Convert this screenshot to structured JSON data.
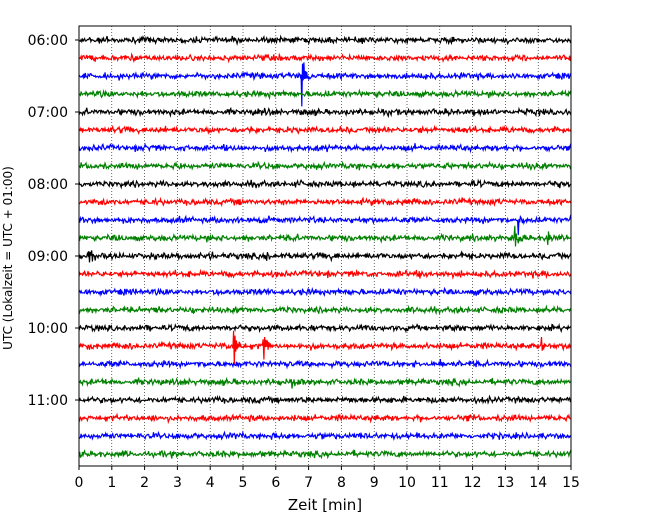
{
  "chart_data": {
    "type": "line",
    "title": "",
    "xlabel": "Zeit  [min]",
    "ylabel": "UTC (Lokalzeit = UTC + 01:00)",
    "xlim": [
      0,
      15
    ],
    "x_ticks": [
      0,
      1,
      2,
      3,
      4,
      5,
      6,
      7,
      8,
      9,
      10,
      11,
      12,
      13,
      14,
      15
    ],
    "y_ticks": [
      {
        "label": "06:00",
        "trace_index": 0
      },
      {
        "label": "07:00",
        "trace_index": 4
      },
      {
        "label": "08:00",
        "trace_index": 8
      },
      {
        "label": "09:00",
        "trace_index": 12
      },
      {
        "label": "10:00",
        "trace_index": 16
      },
      {
        "label": "11:00",
        "trace_index": 20
      }
    ],
    "grid": "vertical dotted at each minute",
    "trace_colors": [
      "#000000",
      "#ff0000",
      "#0000ff",
      "#008000"
    ],
    "trace_count": 24,
    "trace_start": "06:00",
    "trace_interval_min": 15,
    "events": [
      {
        "trace": 2,
        "x": 6.8,
        "amp": 4.0
      },
      {
        "trace": 9,
        "x": 0.7,
        "amp": 0.5
      },
      {
        "trace": 9,
        "x": 5.2,
        "amp": 0.4
      },
      {
        "trace": 9,
        "x": 9.0,
        "amp": 0.4
      },
      {
        "trace": 10,
        "x": 1.2,
        "amp": 0.6
      },
      {
        "trace": 10,
        "x": 5.5,
        "amp": 0.6
      },
      {
        "trace": 10,
        "x": 13.4,
        "amp": 2.0
      },
      {
        "trace": 11,
        "x": 13.3,
        "amp": 1.5
      },
      {
        "trace": 11,
        "x": 14.3,
        "amp": 1.2
      },
      {
        "trace": 11,
        "x": 11.0,
        "amp": 0.5
      },
      {
        "trace": 12,
        "x": 0.3,
        "amp": 1.2
      },
      {
        "trace": 12,
        "x": 4.0,
        "amp": 1.2
      },
      {
        "trace": 12,
        "x": 5.7,
        "amp": 0.8
      },
      {
        "trace": 13,
        "x": 10.4,
        "amp": 0.6
      },
      {
        "trace": 13,
        "x": 11.2,
        "amp": 0.6
      },
      {
        "trace": 15,
        "x": 1.6,
        "amp": 0.4
      },
      {
        "trace": 17,
        "x": 4.7,
        "amp": 3.5
      },
      {
        "trace": 17,
        "x": 5.6,
        "amp": 3.0
      },
      {
        "trace": 17,
        "x": 14.1,
        "amp": 1.0
      },
      {
        "trace": 18,
        "x": 11.0,
        "amp": 0.6
      },
      {
        "trace": 19,
        "x": 6.7,
        "amp": 0.8
      },
      {
        "trace": 19,
        "x": 6.5,
        "amp": 0.5
      },
      {
        "trace": 21,
        "x": 6.0,
        "amp": 0.4
      },
      {
        "trace": 22,
        "x": 7.8,
        "amp": 0.4
      }
    ]
  }
}
